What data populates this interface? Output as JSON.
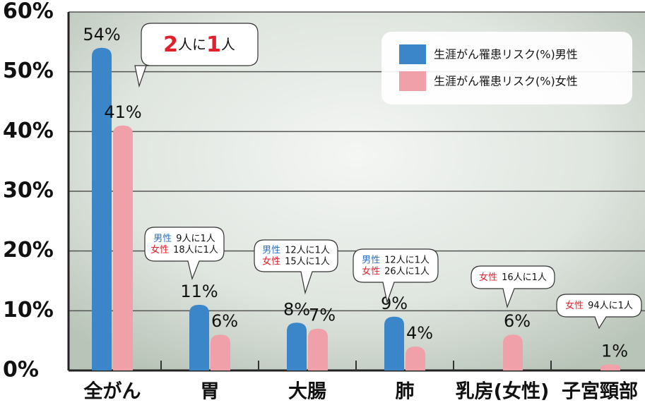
{
  "chart_data": {
    "type": "bar",
    "categories": [
      "全がん",
      "胃",
      "大腸",
      "肺",
      "乳房(女性)",
      "子宮頸部"
    ],
    "series": [
      {
        "name": "生涯がん罹患リスク(%)男性",
        "color": "#3a86c8",
        "values": [
          54,
          11,
          8,
          9,
          null,
          null
        ],
        "value_labels": [
          "54%",
          "11%",
          "8%",
          "9%",
          null,
          null
        ]
      },
      {
        "name": "生涯がん罹患リスク(%)女性",
        "color": "#f0a0a8",
        "values": [
          41,
          6,
          7,
          4,
          6,
          1
        ],
        "value_labels": [
          "41%",
          "6%",
          "7%",
          "4%",
          "6%",
          "1%"
        ]
      }
    ],
    "ylim": [
      0,
      60
    ],
    "yticks": [
      {
        "value": 0,
        "label": "0%"
      },
      {
        "value": 10,
        "label": "10%"
      },
      {
        "value": 20,
        "label": "20%"
      },
      {
        "value": 30,
        "label": "30%"
      },
      {
        "value": 40,
        "label": "40%"
      },
      {
        "value": 50,
        "label": "50%"
      },
      {
        "value": 60,
        "label": "60%"
      }
    ],
    "grid": true,
    "legend": "top-right",
    "callouts": [
      {
        "parts": [
          "2",
          "人に",
          "1",
          "人"
        ]
      },
      {
        "lines": [
          {
            "who": "男性",
            "text": "9人に1人"
          },
          {
            "who": "女性",
            "text": "18人に1人"
          }
        ]
      },
      {
        "lines": [
          {
            "who": "男性",
            "text": "12人に1人"
          },
          {
            "who": "女性",
            "text": "15人に1人"
          }
        ]
      },
      {
        "lines": [
          {
            "who": "男性",
            "text": "12人に1人"
          },
          {
            "who": "女性",
            "text": "26人に1人"
          }
        ]
      },
      {
        "lines": [
          {
            "who": "女性",
            "text": "16人に1人"
          }
        ]
      },
      {
        "lines": [
          {
            "who": "女性",
            "text": "94人に1人"
          }
        ]
      }
    ]
  }
}
